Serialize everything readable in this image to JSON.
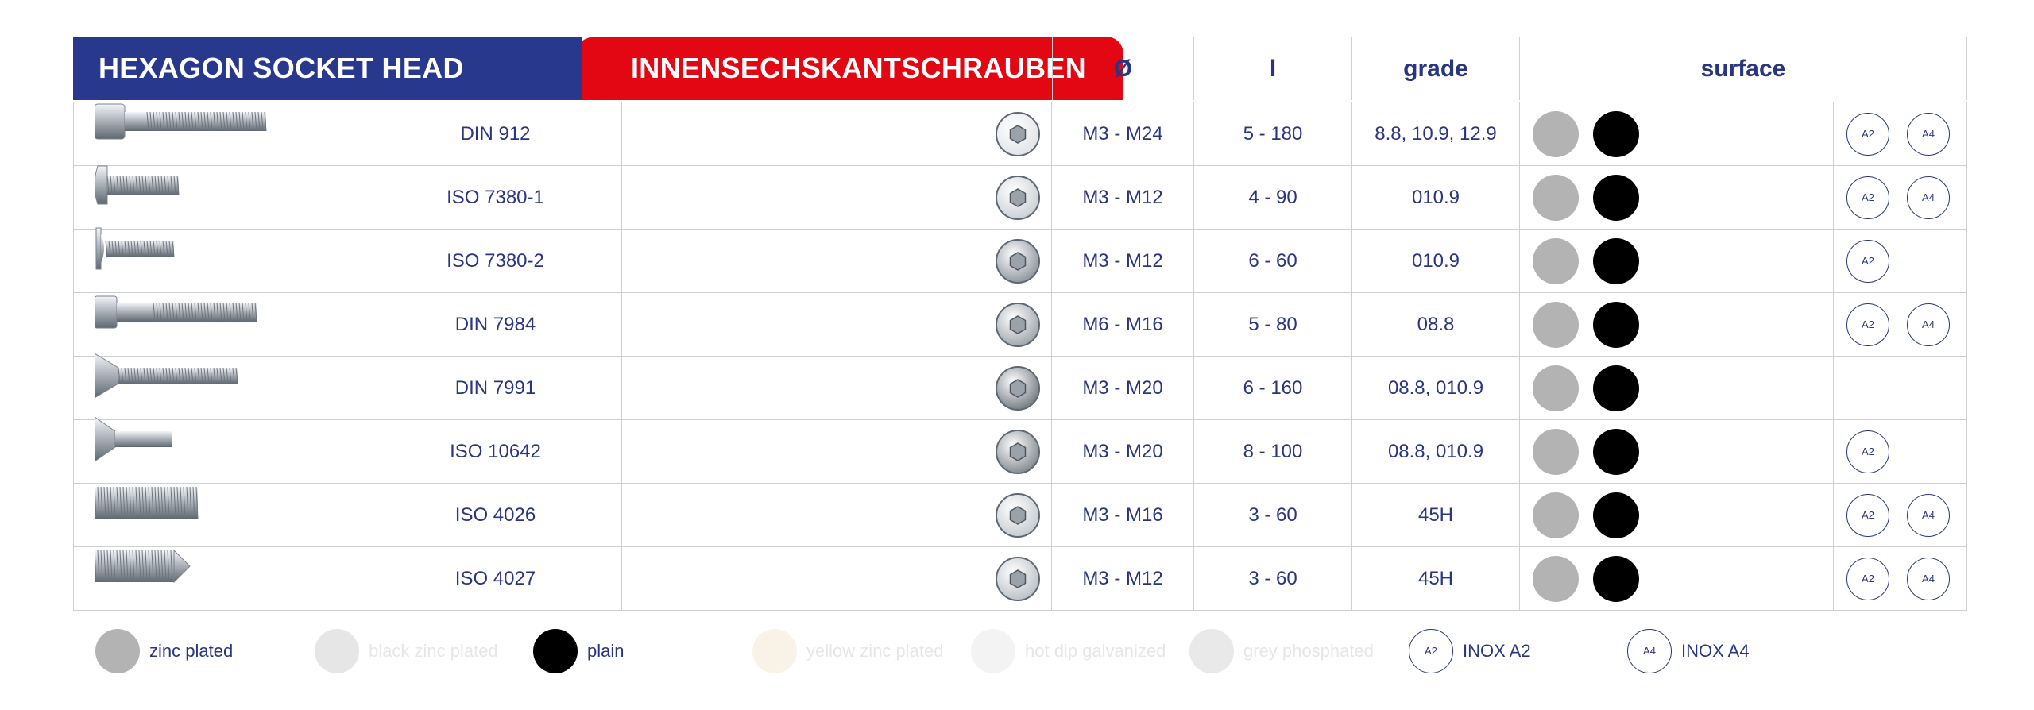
{
  "header": {
    "title_en": "HEXAGON SOCKET HEAD SCREWS",
    "title_de": "INNENSECHSKANTSCHRAUBEN",
    "col_diameter": "Ø",
    "col_length": "l",
    "col_grade": "grade",
    "col_surface": "surface"
  },
  "colors": {
    "blue": "#27388d",
    "red": "#e30613",
    "zinc_plated": "#b3b3b3",
    "plain": "#000000",
    "faded": "#ececec",
    "faded_yellow": "#f7f2e6"
  },
  "rows": [
    {
      "standard": "DIN 912",
      "diameter": "M3 - M24",
      "length": "5 - 180",
      "grade": "8.8, 10.9, 12.9",
      "inox": [
        "A2",
        "A4"
      ],
      "screw_icon": "socket-cap-screw-icon",
      "head_icon": "hex-socket-head-icon"
    },
    {
      "standard": "ISO 7380-1",
      "diameter": "M3 - M12",
      "length": "4 - 90",
      "grade": "010.9",
      "inox": [
        "A2",
        "A4"
      ],
      "screw_icon": "button-head-screw-icon",
      "head_icon": "hex-socket-head-icon"
    },
    {
      "standard": "ISO 7380-2",
      "diameter": "M3 - M12",
      "length": "6 - 60",
      "grade": "010.9",
      "inox": [
        "A2"
      ],
      "screw_icon": "flanged-button-head-screw-icon",
      "head_icon": "hex-socket-head-icon"
    },
    {
      "standard": "DIN 7984",
      "diameter": "M6 - M16",
      "length": "5 - 80",
      "grade": "08.8",
      "inox": [
        "A2",
        "A4"
      ],
      "screw_icon": "low-head-cap-screw-icon",
      "head_icon": "hex-socket-head-icon"
    },
    {
      "standard": "DIN 7991",
      "diameter": "M3 - M20",
      "length": "6 - 160",
      "grade": "08.8, 010.9",
      "inox": [],
      "screw_icon": "countersunk-screw-icon",
      "head_icon": "hex-socket-head-icon"
    },
    {
      "standard": "ISO 10642",
      "diameter": "M3 - M20",
      "length": "8 - 100",
      "grade": "08.8, 010.9",
      "inox": [
        "A2"
      ],
      "screw_icon": "countersunk-screw-icon",
      "head_icon": "hex-socket-head-icon"
    },
    {
      "standard": "ISO 4026",
      "diameter": "M3 - M16",
      "length": "3 - 60",
      "grade": "45H",
      "inox": [
        "A2",
        "A4"
      ],
      "screw_icon": "set-screw-flat-icon",
      "head_icon": "hex-socket-head-icon"
    },
    {
      "standard": "ISO 4027",
      "diameter": "M3 - M12",
      "length": "3 - 60",
      "grade": "45H",
      "inox": [
        "A2",
        "A4"
      ],
      "screw_icon": "set-screw-cone-icon",
      "head_icon": "hex-socket-head-icon"
    }
  ],
  "legend": [
    {
      "label": "zinc plated",
      "kind": "dot",
      "color": "#b3b3b3",
      "faded": false
    },
    {
      "label": "black zinc plated",
      "kind": "dot",
      "color": "#e6e6e6",
      "faded": true
    },
    {
      "label": "plain",
      "kind": "dot",
      "color": "#000000",
      "faded": false
    },
    {
      "label": "yellow zinc plated",
      "kind": "dot",
      "color": "#f8f3e6",
      "faded": true
    },
    {
      "label": "hot dip galvanized",
      "kind": "dot",
      "color": "#f3f3f3",
      "faded": true
    },
    {
      "label": "grey phosphated",
      "kind": "dot",
      "color": "#e9e9e9",
      "faded": true
    },
    {
      "label": "INOX A2",
      "kind": "inox",
      "code": "A2",
      "faded": false
    },
    {
      "label": "INOX A4",
      "kind": "inox",
      "code": "A4",
      "faded": false
    }
  ]
}
